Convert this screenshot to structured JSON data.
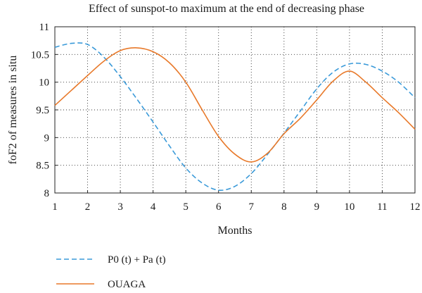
{
  "chart_data": {
    "type": "line",
    "title": "Effect of sunspot-to maximum at the end of decreasing phase",
    "xlabel": "Months",
    "ylabel": "foF2 of measures in situ",
    "xlim": [
      1,
      12
    ],
    "ylim": [
      8,
      11
    ],
    "x_ticks": [
      "1",
      "2",
      "3",
      "4",
      "5",
      "6",
      "7",
      "8",
      "9",
      "10",
      "11",
      "12"
    ],
    "y_ticks": [
      "8",
      "8.5",
      "9",
      "9.5",
      "10",
      "10.5",
      "11"
    ],
    "grid": true,
    "legend_position": "bottom-left",
    "series": [
      {
        "name": "P0 (t) + Pa (t)",
        "color": "#3a9ad9",
        "style": "dashed",
        "x": [
          1,
          1.5,
          2,
          2.5,
          3,
          3.5,
          4,
          4.5,
          5,
          5.5,
          6,
          6.5,
          7,
          7.5,
          8,
          8.5,
          9,
          9.5,
          10,
          10.5,
          11,
          11.5,
          12
        ],
        "y": [
          10.63,
          10.7,
          10.68,
          10.45,
          10.1,
          9.7,
          9.28,
          8.85,
          8.45,
          8.18,
          8.05,
          8.12,
          8.35,
          8.7,
          9.08,
          9.48,
          9.88,
          10.18,
          10.33,
          10.32,
          10.2,
          10.0,
          9.72
        ]
      },
      {
        "name": "OUAGA",
        "color": "#e8792a",
        "style": "solid",
        "x": [
          1,
          1.5,
          2,
          2.5,
          3,
          3.5,
          4,
          4.5,
          5,
          5.5,
          6,
          6.5,
          7,
          7.5,
          8,
          8.5,
          9,
          9.5,
          10,
          10.5,
          11,
          11.5,
          12
        ],
        "y": [
          9.58,
          9.85,
          10.12,
          10.38,
          10.57,
          10.62,
          10.55,
          10.35,
          10.0,
          9.5,
          9.02,
          8.7,
          8.56,
          8.72,
          9.07,
          9.35,
          9.68,
          10.02,
          10.2,
          10.0,
          9.72,
          9.45,
          9.15
        ]
      }
    ]
  }
}
